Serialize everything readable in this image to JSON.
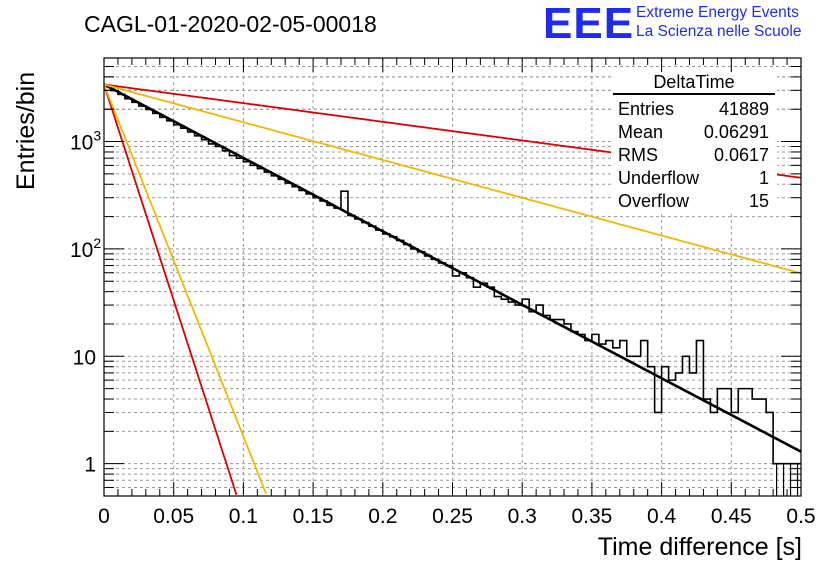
{
  "title": "CAGL-01-2020-02-05-00018",
  "logo": {
    "mark": "EEE",
    "line1": "Extreme Energy Events",
    "line2": "La Scienza nelle Scuole"
  },
  "stats": {
    "name": "DeltaTime",
    "rows": [
      {
        "label": "Entries",
        "value": "41889"
      },
      {
        "label": "Mean",
        "value": "0.06291"
      },
      {
        "label": "RMS",
        "value": "0.0617"
      },
      {
        "label": "Underflow",
        "value": "1"
      },
      {
        "label": "Overflow",
        "value": "15"
      }
    ]
  },
  "colors": {
    "fit": "#000000",
    "red": "#dd0000",
    "orange": "#f2b800",
    "logo": "#1f2cf0"
  },
  "chart_data": {
    "type": "line",
    "xlabel": "Time difference [s]",
    "ylabel": "Entries/bin",
    "xlim": [
      0,
      0.5
    ],
    "ylim": [
      0.5,
      6000
    ],
    "yscale": "log",
    "grid": true,
    "xticks": [
      "0",
      "0.05",
      "0.1",
      "0.15",
      "0.2",
      "0.25",
      "0.3",
      "0.35",
      "0.4",
      "0.45",
      "0.5"
    ],
    "yticks": [
      {
        "value": 1,
        "label": "1"
      },
      {
        "value": 10,
        "label": "10"
      },
      {
        "value": 100,
        "label": "10^2"
      },
      {
        "value": 1000,
        "label": "10^3"
      }
    ],
    "histogram": {
      "bin_width": 0.005,
      "counts": [
        3260,
        2980,
        2750,
        2510,
        2320,
        2140,
        1990,
        1830,
        1680,
        1560,
        1430,
        1330,
        1230,
        1130,
        1040,
        950,
        900,
        820,
        740,
        700,
        650,
        600,
        560,
        520,
        480,
        445,
        410,
        380,
        350,
        325,
        300,
        280,
        255,
        240,
        345,
        205,
        190,
        176,
        163,
        150,
        138,
        130,
        120,
        110,
        100,
        94,
        86,
        80,
        74,
        70,
        56,
        60,
        54,
        44,
        48,
        44,
        36,
        34,
        32,
        30,
        34,
        26,
        30,
        24,
        22,
        22,
        20,
        17,
        16,
        14,
        16,
        13,
        14,
        12,
        14,
        10,
        10,
        14,
        8,
        3,
        8,
        6,
        7,
        10,
        7,
        14,
        4,
        3,
        5,
        5,
        3,
        5,
        5,
        4,
        4,
        3,
        1,
        1,
        1,
        1
      ]
    },
    "series": [
      {
        "values": {
          "a": 3400,
          "tau": 0.0635
        }
      },
      {
        "values": {
          "a": 3400,
          "tau": 0.25
        }
      },
      {
        "values": {
          "a": 3400,
          "tau": 0.1235
        }
      },
      {
        "values": {
          "a": 3400,
          "tau": 0.0108
        }
      },
      {
        "values": {
          "a": 3400,
          "tau": 0.01325
        }
      }
    ]
  }
}
